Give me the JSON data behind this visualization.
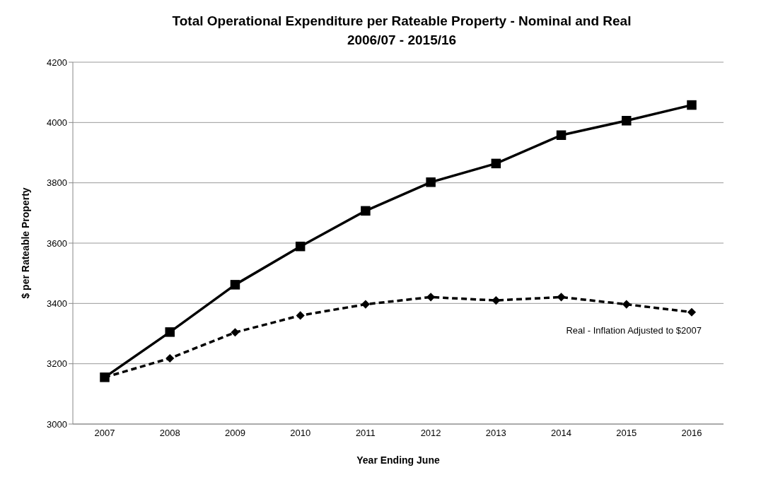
{
  "chart_data": {
    "type": "line",
    "title": "Total Operational Expenditure per Rateable Property - Nominal and Real\n2006/07 - 2015/16",
    "xlabel": "Year Ending June",
    "ylabel": "$ per Rateable Property",
    "categories": [
      "2007",
      "2008",
      "2009",
      "2010",
      "2011",
      "2012",
      "2013",
      "2014",
      "2015",
      "2016"
    ],
    "series": [
      {
        "color": "#000000",
        "marker": "square",
        "line_style": "solid",
        "values": [
          3155,
          3305,
          3462,
          3589,
          3707,
          3802,
          3864,
          3958,
          4006,
          4058
        ]
      },
      {
        "name": "Real - Inflation Adjusted to $2007",
        "color": "#000000",
        "marker": "diamond",
        "line_style": "dashed",
        "values": [
          3155,
          3218,
          3304,
          3360,
          3397,
          3421,
          3410,
          3421,
          3397,
          3371
        ]
      }
    ],
    "ylim": [
      3000,
      4200
    ],
    "yticks": [
      3000,
      3200,
      3400,
      3600,
      3800,
      4000,
      4200
    ],
    "grid": "y",
    "legend": false
  }
}
